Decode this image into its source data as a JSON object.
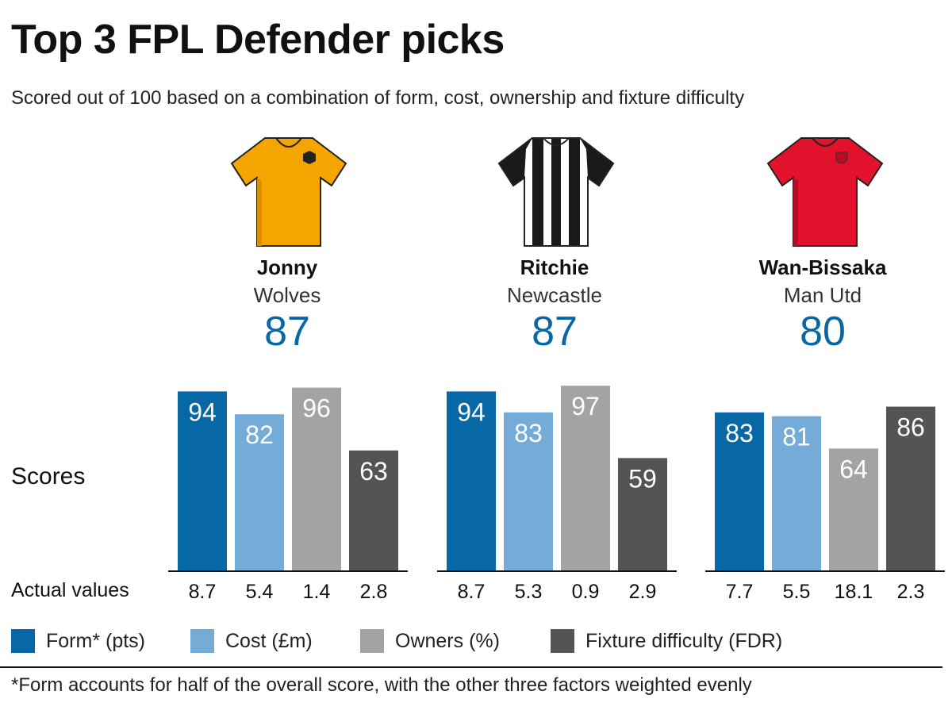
{
  "title": "Top 3 FPL Defender picks",
  "subtitle": "Scored out of 100 based on a combination of form, cost, ownership and fixture difficulty",
  "footnote": "*Form accounts for half of the overall score, with the other three factors weighted evenly",
  "row_labels": {
    "scores": "Scores",
    "actual": "Actual values"
  },
  "players": [
    {
      "name": "Jonny",
      "team": "Wolves",
      "overall": "87",
      "shirt": "wolves-shirt-icon"
    },
    {
      "name": "Ritchie",
      "team": "Newcastle",
      "overall": "87",
      "shirt": "newcastle-shirt-icon"
    },
    {
      "name": "Wan-Bissaka",
      "team": "Man Utd",
      "overall": "80",
      "shirt": "manutd-shirt-icon"
    }
  ],
  "legend": [
    {
      "label": "Form* (pts)",
      "color": "#0868A5"
    },
    {
      "label": "Cost (£m)",
      "color": "#74ABD7"
    },
    {
      "label": "Owners (%)",
      "color": "#A3A3A3"
    },
    {
      "label": "Fixture difficulty (FDR)",
      "color": "#545454"
    }
  ],
  "colors": {
    "overall": "#0868A5",
    "wolves": "#F5A500",
    "newcastle_dark": "#1A1A1A",
    "manutd": "#E3122C"
  },
  "chart_data": {
    "type": "bar",
    "categories": [
      "Form* (pts)",
      "Cost (£m)",
      "Owners (%)",
      "Fixture difficulty (FDR)"
    ],
    "ylim": [
      0,
      100
    ],
    "groups": [
      {
        "player": "Jonny",
        "scores": [
          94,
          82,
          96,
          63
        ],
        "actual": [
          "8.7",
          "5.4",
          "1.4",
          "2.8"
        ]
      },
      {
        "player": "Ritchie",
        "scores": [
          94,
          83,
          97,
          59
        ],
        "actual": [
          "8.7",
          "5.3",
          "0.9",
          "2.9"
        ]
      },
      {
        "player": "Wan-Bissaka",
        "scores": [
          83,
          81,
          64,
          86
        ],
        "actual": [
          "7.7",
          "5.5",
          "18.1",
          "2.3"
        ]
      }
    ]
  }
}
